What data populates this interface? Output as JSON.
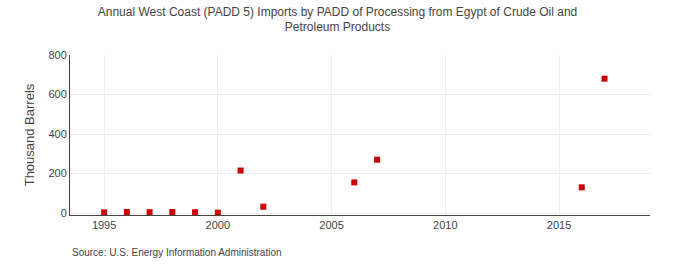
{
  "chart_data": {
    "type": "scatter",
    "title": "Annual West Coast (PADD 5) Imports by PADD of Processing from Egypt of Crude Oil and\nPetroleum Products",
    "ylabel": "Thousand Barrels",
    "annotations": [
      "Source: U.S. Energy Information Administration"
    ],
    "x": [
      1995,
      1996,
      1997,
      1998,
      1999,
      2000,
      2001,
      2002,
      2006,
      2007,
      2016,
      2017
    ],
    "values": [
      3,
      5,
      4,
      5,
      4,
      2,
      215,
      32,
      155,
      270,
      130,
      680
    ],
    "color": "#cc0000",
    "marker": "square",
    "xlim": [
      1993.5,
      2019
    ],
    "xticks": [
      1995,
      2000,
      2005,
      2010,
      2015
    ],
    "ylim": [
      -10,
      800
    ],
    "yticks": [
      0,
      200,
      400,
      600,
      800
    ],
    "grid": true
  }
}
